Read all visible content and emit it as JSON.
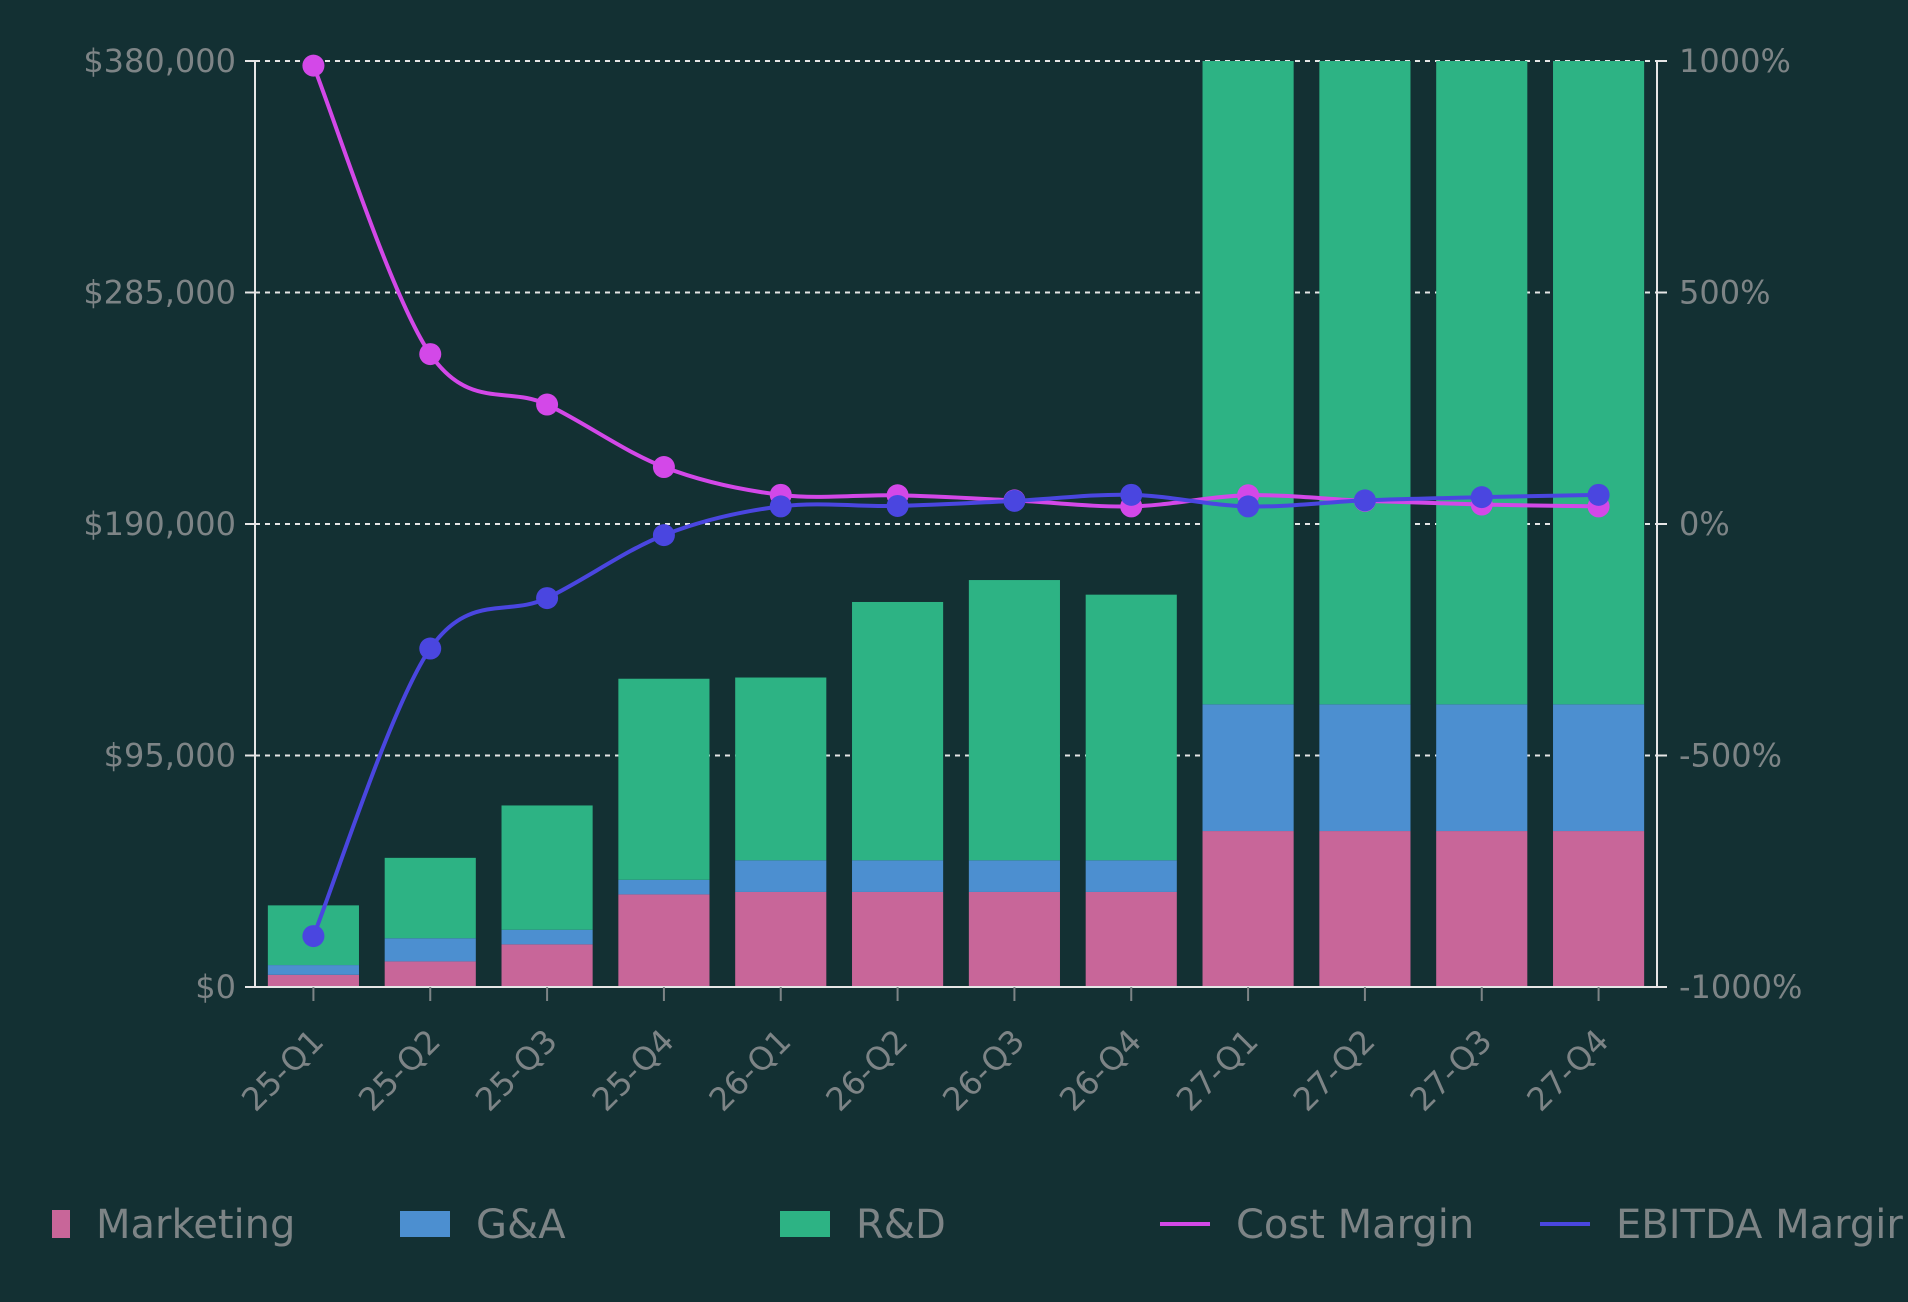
{
  "chart_data": {
    "type": "bar",
    "stacked": true,
    "categories": [
      "25-Q1",
      "25-Q2",
      "25-Q3",
      "25-Q4",
      "26-Q1",
      "26-Q2",
      "26-Q3",
      "26-Q4",
      "27-Q1",
      "27-Q2",
      "27-Q3",
      "27-Q4"
    ],
    "series": [
      {
        "name": "Marketing",
        "type": "bar",
        "axis": "left",
        "color": "#c86699",
        "values": [
          5000,
          10500,
          17500,
          38000,
          39000,
          39000,
          39000,
          39000,
          64000,
          64000,
          64000,
          64000
        ]
      },
      {
        "name": "G&A",
        "type": "bar",
        "axis": "left",
        "color": "#4c8fd0",
        "values": [
          4000,
          9500,
          6000,
          6000,
          13000,
          13000,
          13000,
          13000,
          52000,
          52000,
          52000,
          52000
        ]
      },
      {
        "name": "R&D",
        "type": "bar",
        "axis": "left",
        "color": "#2db384",
        "values": [
          24500,
          33000,
          51000,
          82500,
          75000,
          106000,
          115000,
          109000,
          264000,
          264000,
          264000,
          264000
        ]
      },
      {
        "name": "Cost Margin",
        "type": "line",
        "axis": "right",
        "color": "#d348e8",
        "values": [
          990,
          367,
          258,
          123,
          63,
          62,
          51,
          38,
          62,
          50,
          42,
          38
        ]
      },
      {
        "name": "EBITDA Margin",
        "type": "line",
        "axis": "right",
        "color": "#4a46e0",
        "values": [
          -890,
          -269,
          -160,
          -24,
          38,
          39,
          50,
          63,
          38,
          51,
          58,
          63
        ]
      }
    ],
    "y_left": {
      "min": 0,
      "max": 380000,
      "ticks": [
        "$0",
        "$95,000",
        "$190,000",
        "$285,000",
        "$380,000"
      ]
    },
    "y_right": {
      "min": -1000,
      "max": 1000,
      "ticks": [
        "-1000%",
        "-500%",
        "0%",
        "500%",
        "1000%"
      ]
    },
    "grid": true,
    "legend": {
      "position": "bottom",
      "labels": [
        "Marketing",
        "G&A",
        "R&D",
        "Cost Margin",
        "EBITDA Margir"
      ]
    }
  }
}
